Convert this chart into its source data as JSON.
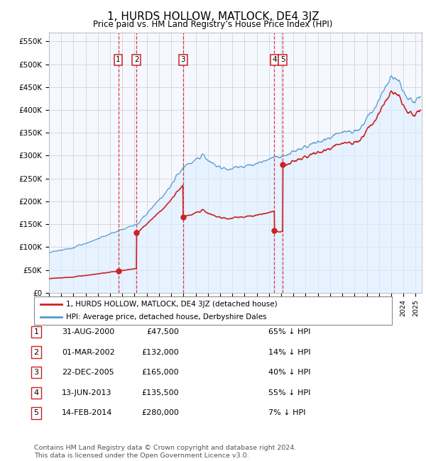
{
  "title": "1, HURDS HOLLOW, MATLOCK, DE4 3JZ",
  "subtitle": "Price paid vs. HM Land Registry’s House Price Index (HPI)",
  "ylim": [
    0,
    570000
  ],
  "yticks": [
    0,
    50000,
    100000,
    150000,
    200000,
    250000,
    300000,
    350000,
    400000,
    450000,
    500000,
    550000
  ],
  "ytick_labels": [
    "£0",
    "£50K",
    "£100K",
    "£150K",
    "£200K",
    "£250K",
    "£300K",
    "£350K",
    "£400K",
    "£450K",
    "£500K",
    "£550K"
  ],
  "sales": [
    {
      "index": 1,
      "date_num": 2000.667,
      "price": 47500
    },
    {
      "index": 2,
      "date_num": 2002.167,
      "price": 132000
    },
    {
      "index": 3,
      "date_num": 2005.978,
      "price": 165000
    },
    {
      "index": 4,
      "date_num": 2013.442,
      "price": 135500
    },
    {
      "index": 5,
      "date_num": 2014.121,
      "price": 280000
    }
  ],
  "red_line_color": "#cc2222",
  "blue_line_color": "#5599cc",
  "blue_fill_color": "#ddeeff",
  "grid_color": "#cccccc",
  "vline_color": "#cc2222",
  "box_edge_color": "#cc2222",
  "bg_color": "#f5f8ff",
  "legend_entries": [
    "1, HURDS HOLLOW, MATLOCK, DE4 3JZ (detached house)",
    "HPI: Average price, detached house, Derbyshire Dales"
  ],
  "table_rows": [
    [
      "1",
      "31-AUG-2000",
      "£47,500",
      "65% ↓ HPI"
    ],
    [
      "2",
      "01-MAR-2002",
      "£132,000",
      "14% ↓ HPI"
    ],
    [
      "3",
      "22-DEC-2005",
      "£165,000",
      "40% ↓ HPI"
    ],
    [
      "4",
      "13-JUN-2013",
      "£135,500",
      "55% ↓ HPI"
    ],
    [
      "5",
      "14-FEB-2014",
      "£280,000",
      "7% ↓ HPI"
    ]
  ],
  "footnote": "Contains HM Land Registry data © Crown copyright and database right 2024.\nThis data is licensed under the Open Government Licence v3.0.",
  "xmin": 1995,
  "xmax": 2025.5,
  "hpi_base_1995": 88000,
  "hpi_at_sale1": 135700,
  "hpi_at_sale2": 153500,
  "hpi_at_sale3": 275000,
  "hpi_at_sale4": 301000,
  "hpi_at_sale5": 301000
}
